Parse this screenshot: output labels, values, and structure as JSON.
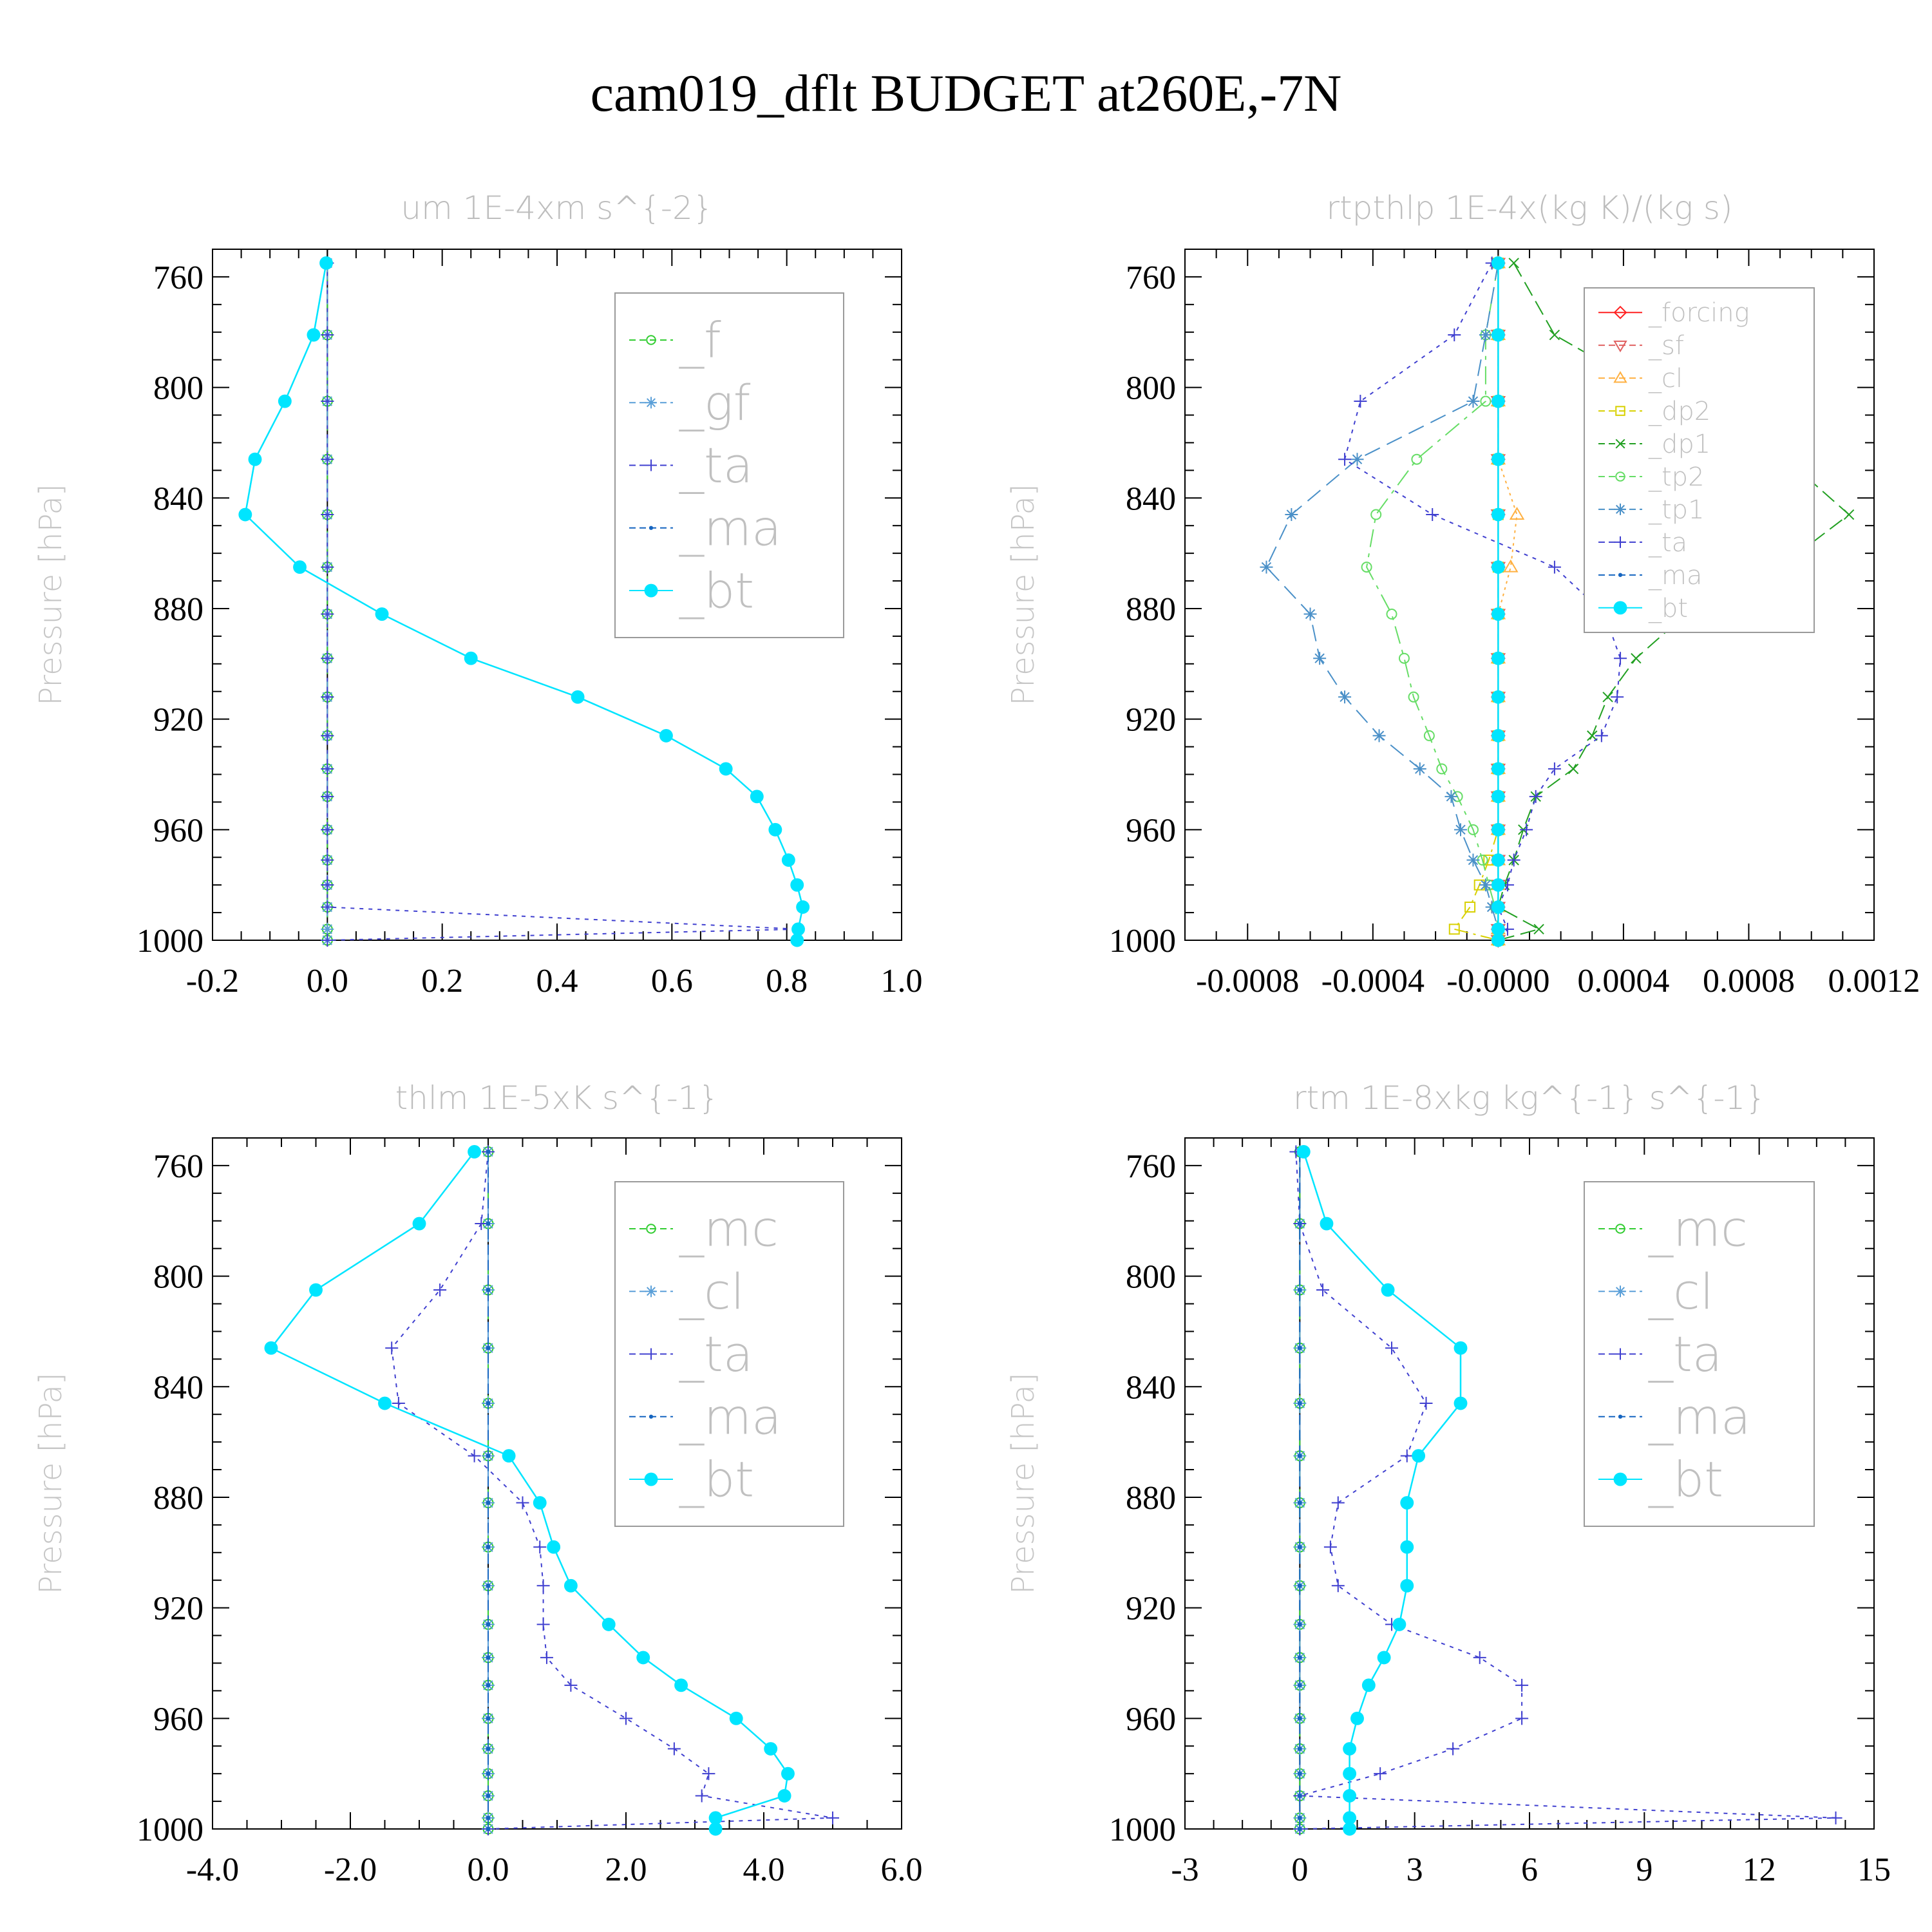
{
  "title": "cam019_dflt  BUDGET at260E,-7N",
  "chart_data": [
    {
      "type": "line",
      "title": "um   1E-4xm s^{-2}",
      "ylabel": "Pressure [hPa]",
      "xlim": [
        -0.2,
        1.0
      ],
      "xticks": [
        -0.2,
        0.0,
        0.2,
        0.4,
        0.6,
        0.8,
        1.0
      ],
      "xtick_labels": [
        "-0.2",
        "0.0",
        "0.2",
        "0.4",
        "0.6",
        "0.8",
        "1.0"
      ],
      "xtick_minor": 0.05,
      "ylim": [
        750,
        1000
      ],
      "yticks": [
        760,
        800,
        840,
        880,
        920,
        960,
        1000
      ],
      "y": [
        755,
        781,
        805,
        826,
        846,
        865,
        882,
        898,
        912,
        926,
        938,
        948,
        960,
        971,
        980,
        988,
        996,
        1000
      ],
      "legend": "boxed-top-right",
      "series": [
        {
          "name": "_f",
          "color": "#32cd32",
          "marker": "circle-open",
          "dash": "28,10,6,10",
          "values": [
            0,
            0,
            0,
            0,
            0,
            0,
            0,
            0,
            0,
            0,
            0,
            0,
            0,
            0,
            0,
            0,
            0,
            0
          ]
        },
        {
          "name": "_gf",
          "color": "#5a9fd8",
          "marker": "asterisk",
          "dash": "26,12",
          "values": [
            0,
            0,
            0,
            0,
            0,
            0,
            0,
            0,
            0,
            0,
            0,
            0,
            0,
            0,
            0,
            0,
            0,
            0
          ]
        },
        {
          "name": "_ta",
          "color": "#4040d0",
          "marker": "plus",
          "dash": "6,8",
          "values": [
            0,
            0,
            0,
            0,
            0,
            0,
            0,
            0,
            0,
            0,
            0,
            0,
            0,
            0,
            0,
            0,
            0.82,
            0
          ]
        },
        {
          "name": "_ma",
          "color": "#1565c0",
          "marker": "dot",
          "dash": "16,8",
          "values": [
            -0.002,
            -0.024,
            -0.074,
            -0.126,
            -0.143,
            -0.048,
            0.095,
            0.25,
            0.436,
            0.59,
            0.694,
            0.748,
            0.78,
            0.803,
            0.818,
            0.828,
            0.82,
            0.818
          ]
        },
        {
          "name": "_bt",
          "color": "#00e5ff",
          "marker": "filled",
          "dash": "",
          "values": [
            -0.002,
            -0.024,
            -0.074,
            -0.126,
            -0.143,
            -0.048,
            0.095,
            0.25,
            0.436,
            0.59,
            0.694,
            0.748,
            0.78,
            0.803,
            0.818,
            0.828,
            0.82,
            0.818
          ]
        }
      ]
    },
    {
      "type": "line",
      "title": "rtpthlp   1E-4x(kg K)/(kg s)",
      "ylabel": "Pressure [hPa]",
      "xlim": [
        -0.001,
        0.0012
      ],
      "xticks": [
        -0.0008,
        -0.0004,
        0.0,
        0.0004,
        0.0008,
        0.0012
      ],
      "xtick_labels": [
        "-0.0008",
        "-0.0004",
        "-0.0000",
        "0.0004",
        "0.0008",
        "0.0012"
      ],
      "xtick_minor": 0.0001,
      "ylim": [
        750,
        1000
      ],
      "yticks": [
        760,
        800,
        840,
        880,
        920,
        960,
        1000
      ],
      "y": [
        755,
        781,
        805,
        826,
        846,
        865,
        882,
        898,
        912,
        926,
        938,
        948,
        960,
        971,
        980,
        988,
        996,
        1000
      ],
      "legend": "boxed-top-right",
      "series": [
        {
          "name": "_forcing",
          "color": "#ff2020",
          "marker": "diamond",
          "dash": "",
          "values": [
            0,
            0,
            0,
            0,
            0,
            0,
            0,
            0,
            0,
            0,
            0,
            0,
            0,
            0,
            0,
            0,
            0,
            0
          ]
        },
        {
          "name": "_sf",
          "color": "#e06060",
          "marker": "tri-down",
          "dash": "14,8",
          "values": [
            0,
            0,
            0,
            0,
            0,
            0,
            0,
            0,
            0,
            0,
            0,
            0,
            0,
            0,
            0,
            0,
            0,
            0
          ]
        },
        {
          "name": "_cl",
          "color": "#ffb040",
          "marker": "tri-up",
          "dash": "4,6",
          "values": [
            0,
            0,
            0,
            0,
            6e-05,
            4e-05,
            0,
            0,
            0,
            0,
            0,
            0,
            0,
            0,
            0,
            0,
            0,
            0
          ]
        },
        {
          "name": "_dp2",
          "color": "#d8d000",
          "marker": "square",
          "dash": "22,8,4,8",
          "values": [
            0,
            0,
            0,
            0,
            0,
            0,
            0,
            0,
            0,
            0,
            0,
            0,
            0,
            -3e-05,
            -6e-05,
            -9e-05,
            -0.00014,
            0
          ]
        },
        {
          "name": "_dp1",
          "color": "#22a022",
          "marker": "x",
          "dash": "24,10",
          "values": [
            5e-05,
            0.00018,
            0.00055,
            0.00092,
            0.00112,
            0.0009,
            0.0006,
            0.00044,
            0.00035,
            0.0003,
            0.00024,
            0.00012,
            8e-05,
            5e-05,
            2e-05,
            0.0,
            0.00013,
            0
          ]
        },
        {
          "name": "_tp2",
          "color": "#66dd66",
          "marker": "circle-open",
          "dash": "28,10,6,10",
          "values": [
            0,
            -4e-05,
            -4e-05,
            -0.00026,
            -0.00039,
            -0.00042,
            -0.00034,
            -0.0003,
            -0.00027,
            -0.00022,
            -0.00018,
            -0.00013,
            -8e-05,
            -5e-05,
            -3e-05,
            -1e-05,
            0,
            0
          ]
        },
        {
          "name": "_tp1",
          "color": "#4a90c8",
          "marker": "asterisk",
          "dash": "26,12",
          "values": [
            0,
            -4e-05,
            -8e-05,
            -0.00045,
            -0.00066,
            -0.00074,
            -0.0006,
            -0.00057,
            -0.00049,
            -0.00038,
            -0.00025,
            -0.00015,
            -0.00012,
            -8e-05,
            -4e-05,
            -2e-05,
            0,
            0
          ]
        },
        {
          "name": "_ta",
          "color": "#4040d0",
          "marker": "plus",
          "dash": "6,8",
          "values": [
            -2e-05,
            -0.00014,
            -0.00044,
            -0.00049,
            -0.00021,
            0.00018,
            0.00034,
            0.00039,
            0.00038,
            0.00033,
            0.00018,
            0.00012,
            9e-05,
            5e-05,
            3e-05,
            0.0,
            3e-05,
            0
          ]
        },
        {
          "name": "_ma",
          "color": "#1565c0",
          "marker": "dot",
          "dash": "16,8",
          "values": [
            0,
            0,
            0,
            0,
            0,
            0,
            0,
            0,
            0,
            0,
            0,
            0,
            0,
            0,
            0,
            0,
            0,
            0
          ]
        },
        {
          "name": "_bt",
          "color": "#00e5ff",
          "marker": "filled",
          "dash": "",
          "values": [
            0,
            0,
            0,
            0,
            0,
            0,
            0,
            0,
            0,
            0,
            0,
            0,
            0,
            0,
            0,
            0,
            0,
            0
          ]
        }
      ]
    },
    {
      "type": "line",
      "title": "thlm   1E-5xK s^{-1}",
      "ylabel": "Pressure [hPa]",
      "xlim": [
        -4.0,
        6.0
      ],
      "xticks": [
        -4.0,
        -2.0,
        0.0,
        2.0,
        4.0,
        6.0
      ],
      "xtick_labels": [
        "-4.0",
        "-2.0",
        "0.0",
        "2.0",
        "4.0",
        "6.0"
      ],
      "xtick_minor": 0.5,
      "ylim": [
        750,
        1000
      ],
      "yticks": [
        760,
        800,
        840,
        880,
        920,
        960,
        1000
      ],
      "y": [
        755,
        781,
        805,
        826,
        846,
        865,
        882,
        898,
        912,
        926,
        938,
        948,
        960,
        971,
        980,
        988,
        996,
        1000
      ],
      "legend": "boxed-top-right",
      "series": [
        {
          "name": "_mc",
          "color": "#32cd32",
          "marker": "circle-open",
          "dash": "28,10,6,10",
          "values": [
            0,
            0,
            0,
            0,
            0,
            0,
            0,
            0,
            0,
            0,
            0,
            0,
            0,
            0,
            0,
            0,
            0,
            0
          ]
        },
        {
          "name": "_cl",
          "color": "#5a9fd8",
          "marker": "asterisk",
          "dash": "26,12",
          "values": [
            0,
            0,
            0,
            0,
            0,
            0,
            0,
            0,
            0,
            0,
            0,
            0,
            0,
            0,
            0,
            0,
            0,
            0
          ]
        },
        {
          "name": "_ta",
          "color": "#4040d0",
          "marker": "plus",
          "dash": "6,8",
          "values": [
            0.0,
            -0.1,
            -0.7,
            -1.4,
            -1.3,
            -0.2,
            0.5,
            0.75,
            0.8,
            0.8,
            0.85,
            1.2,
            2.0,
            2.7,
            3.2,
            3.1,
            5.0,
            0.0
          ]
        },
        {
          "name": "_ma",
          "color": "#1565c0",
          "marker": "dot",
          "dash": "16,8",
          "values": [
            0,
            0,
            0,
            0,
            0,
            0,
            0,
            0,
            0,
            0,
            0,
            0,
            0,
            0,
            0,
            0,
            0,
            0
          ]
        },
        {
          "name": "_bt",
          "color": "#00e5ff",
          "marker": "filled",
          "dash": "",
          "values": [
            -0.2,
            -1.0,
            -2.5,
            -3.15,
            -1.5,
            0.3,
            0.75,
            0.95,
            1.2,
            1.75,
            2.25,
            2.8,
            3.6,
            4.1,
            4.35,
            4.3,
            3.3,
            3.3
          ]
        }
      ]
    },
    {
      "type": "line",
      "title": "rtm   1E-8xkg kg^{-1} s^{-1}",
      "ylabel": "Pressure [hPa]",
      "xlim": [
        -3,
        15
      ],
      "xticks": [
        -3,
        0,
        3,
        6,
        9,
        12,
        15
      ],
      "xtick_labels": [
        "-3",
        "0",
        "3",
        "6",
        "9",
        "12",
        "15"
      ],
      "xtick_minor": 0.75,
      "ylim": [
        750,
        1000
      ],
      "yticks": [
        760,
        800,
        840,
        880,
        920,
        960,
        1000
      ],
      "y": [
        755,
        781,
        805,
        826,
        846,
        865,
        882,
        898,
        912,
        926,
        938,
        948,
        960,
        971,
        980,
        988,
        996,
        1000
      ],
      "legend": "boxed-top-right",
      "series": [
        {
          "name": "_mc",
          "color": "#32cd32",
          "marker": "circle-open",
          "dash": "28,10,6,10",
          "values": [
            0,
            0,
            0,
            0,
            0,
            0,
            0,
            0,
            0,
            0,
            0,
            0,
            0,
            0,
            0,
            0,
            0,
            0
          ]
        },
        {
          "name": "_cl",
          "color": "#5a9fd8",
          "marker": "asterisk",
          "dash": "26,12",
          "values": [
            0,
            0,
            0,
            0,
            0,
            0,
            0,
            0,
            0,
            0,
            0,
            0,
            0,
            0,
            0,
            0,
            0,
            0
          ]
        },
        {
          "name": "_ta",
          "color": "#4040d0",
          "marker": "plus",
          "dash": "6,8",
          "values": [
            -0.1,
            0.0,
            0.6,
            2.4,
            3.3,
            2.8,
            1.0,
            0.8,
            1.0,
            2.4,
            4.7,
            5.8,
            5.8,
            4.0,
            2.1,
            0.0,
            14.0,
            0.0
          ]
        },
        {
          "name": "_ma",
          "color": "#1565c0",
          "marker": "dot",
          "dash": "16,8",
          "values": [
            0,
            0,
            0,
            0,
            0,
            0,
            0,
            0,
            0,
            0,
            0,
            0,
            0,
            0,
            0,
            0,
            0,
            0
          ]
        },
        {
          "name": "_bt",
          "color": "#00e5ff",
          "marker": "filled",
          "dash": "",
          "values": [
            0.1,
            0.7,
            2.3,
            4.2,
            4.2,
            3.1,
            2.8,
            2.8,
            2.8,
            2.6,
            2.2,
            1.8,
            1.5,
            1.3,
            1.3,
            1.3,
            1.3,
            1.3
          ]
        }
      ]
    }
  ]
}
